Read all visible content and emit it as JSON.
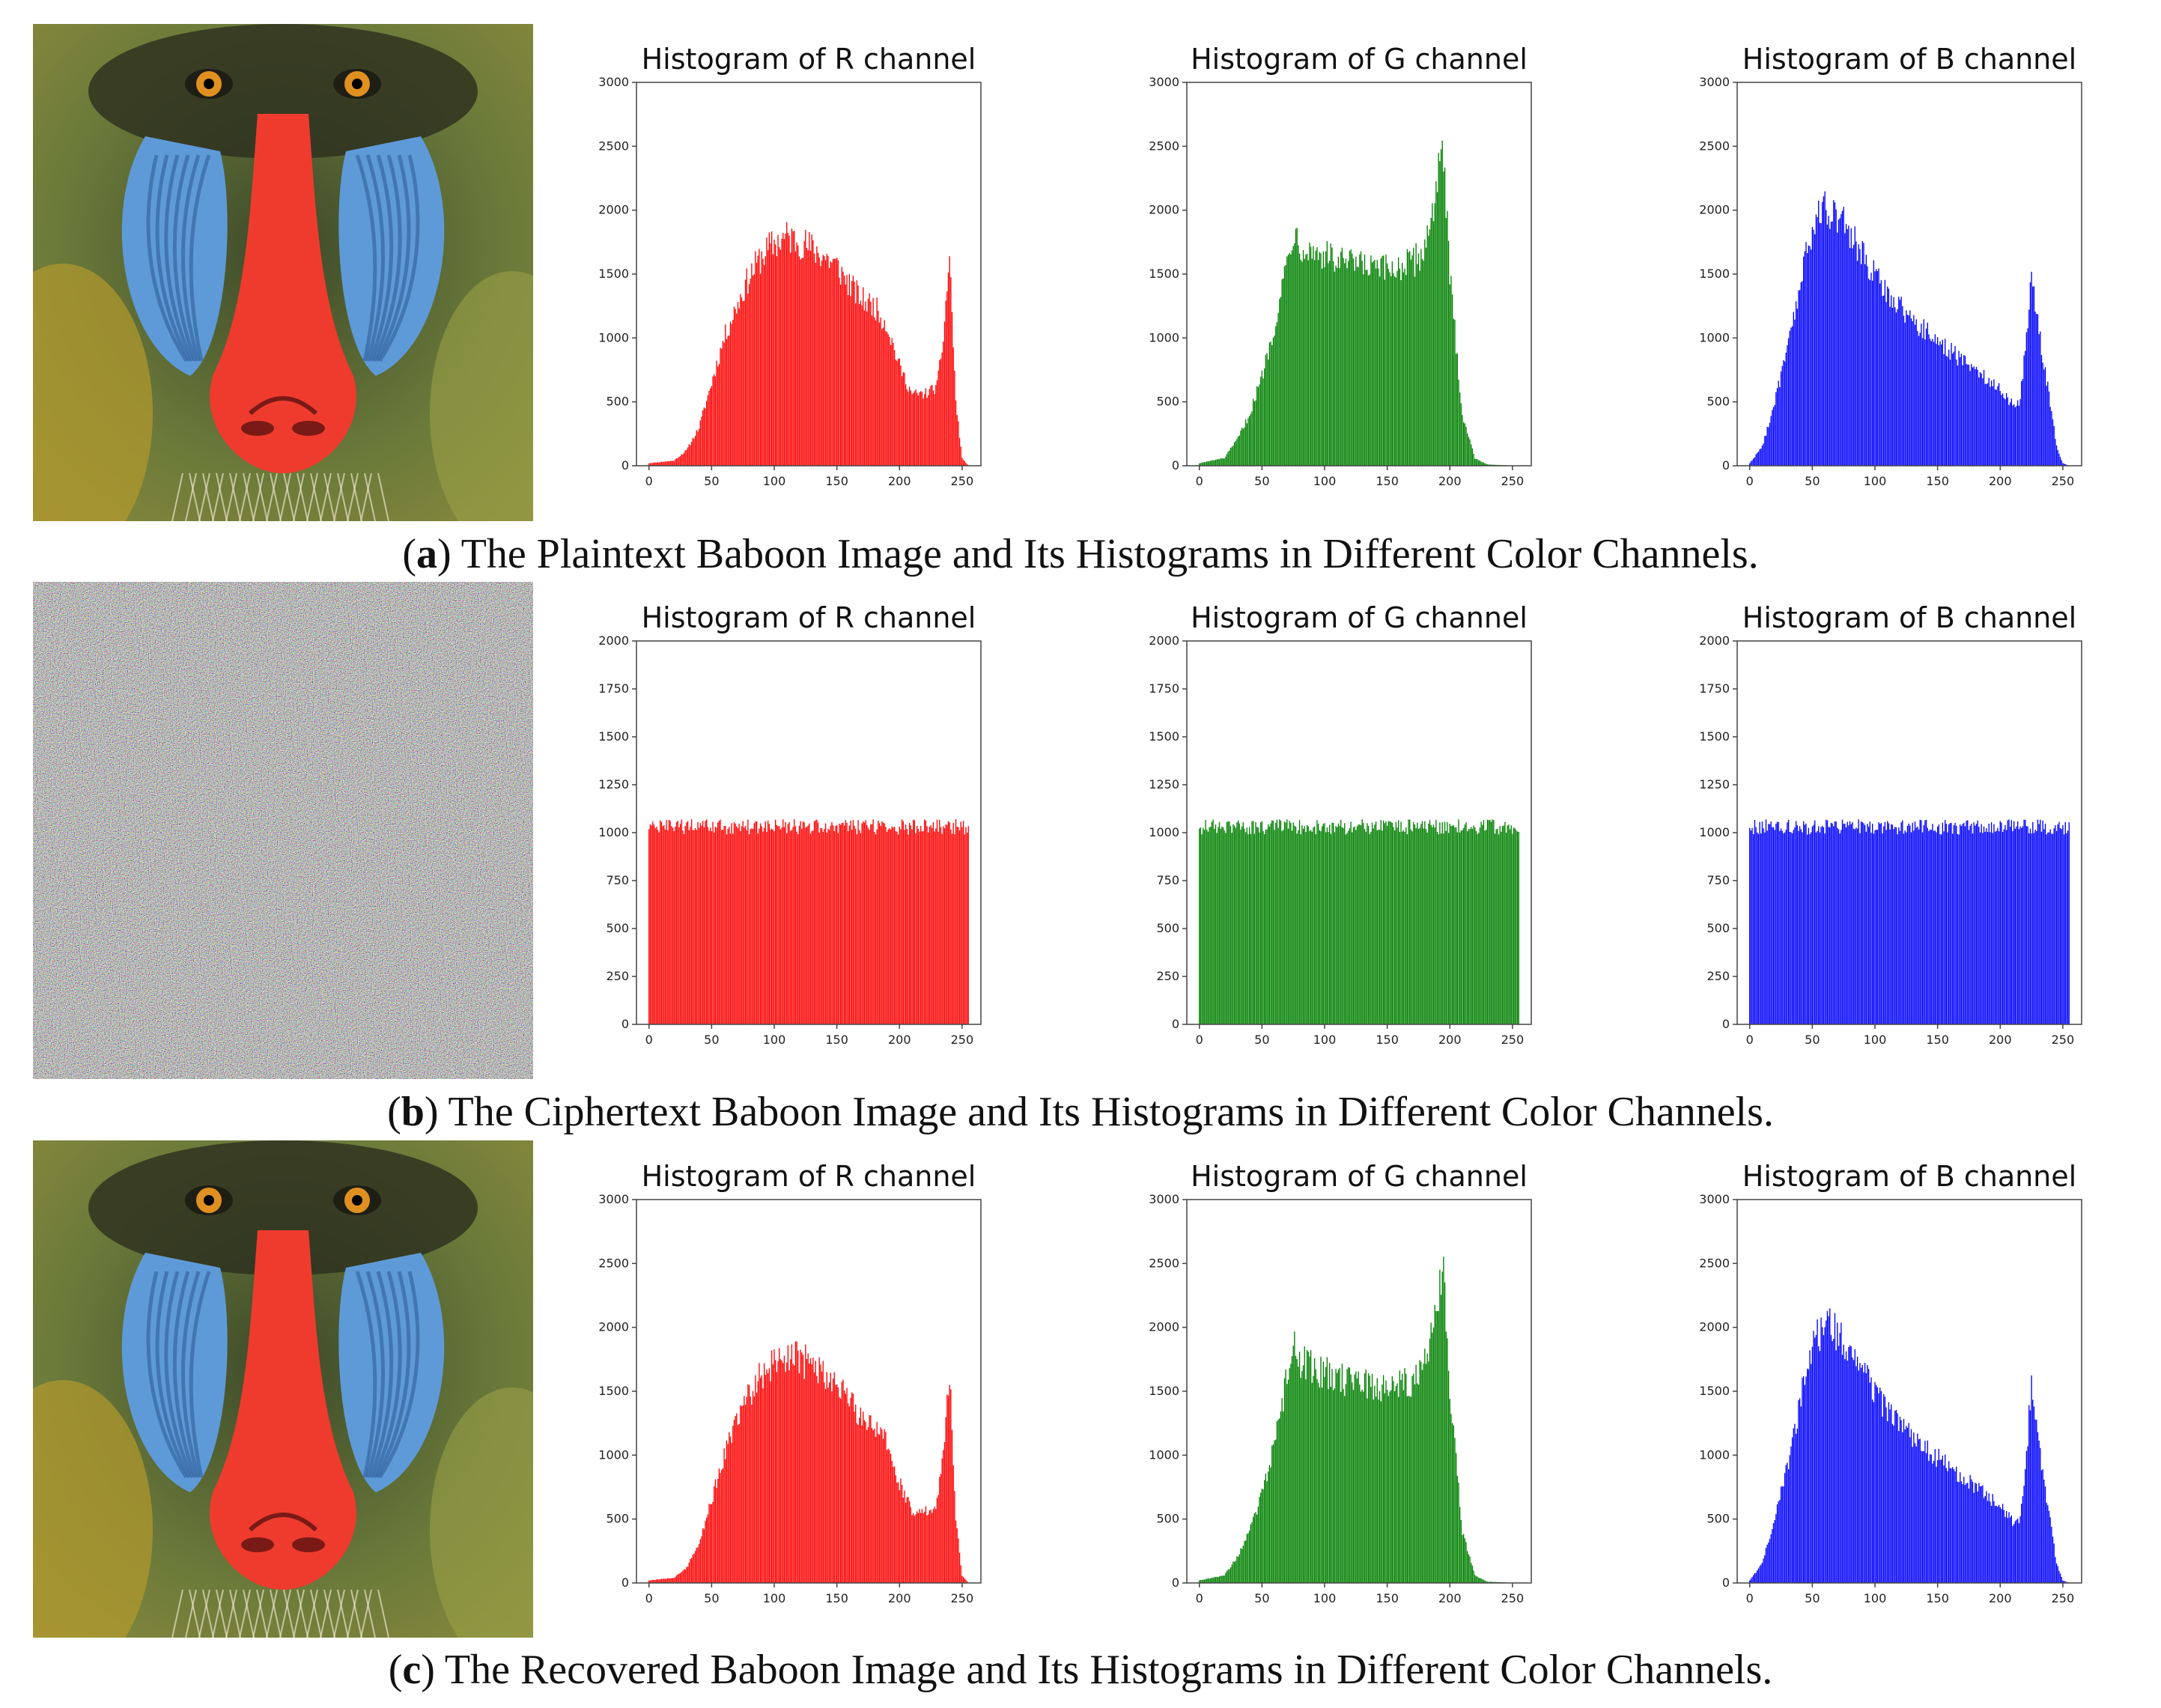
{
  "rows": [
    {
      "caption_letter": "a",
      "caption_text": "The Plaintext Baboon Image and Its Histograms in Different Color Channels.",
      "image_kind": "baboon"
    },
    {
      "caption_letter": "b",
      "caption_text": "The Ciphertext Baboon Image and Its Histograms in Different Color Channels.",
      "image_kind": "noise"
    },
    {
      "caption_letter": "c",
      "caption_text": "The Recovered Baboon Image and Its Histograms in Different Color Channels.",
      "image_kind": "baboon"
    }
  ],
  "chart_data": [
    {
      "type": "bar",
      "title": "Histogram of R channel",
      "color": "#ff0000",
      "profile": "R_plain",
      "xlim": [
        -10,
        265
      ],
      "xticks": [
        "0",
        "50",
        "100",
        "150",
        "200",
        "250"
      ],
      "ylim": [
        0,
        3000
      ],
      "yticks": [
        "0",
        "500",
        "1000",
        "1500",
        "2000",
        "2500",
        "3000"
      ]
    },
    {
      "type": "bar",
      "title": "Histogram of G channel",
      "color": "#008000",
      "profile": "G_plain",
      "xlim": [
        -10,
        265
      ],
      "xticks": [
        "0",
        "50",
        "100",
        "150",
        "200",
        "250"
      ],
      "ylim": [
        0,
        3000
      ],
      "yticks": [
        "0",
        "500",
        "1000",
        "1500",
        "2000",
        "2500",
        "3000"
      ]
    },
    {
      "type": "bar",
      "title": "Histogram of B channel",
      "color": "#0000ff",
      "profile": "B_plain",
      "xlim": [
        -10,
        265
      ],
      "xticks": [
        "0",
        "50",
        "100",
        "150",
        "200",
        "250"
      ],
      "ylim": [
        0,
        3000
      ],
      "yticks": [
        "0",
        "500",
        "1000",
        "1500",
        "2000",
        "2500",
        "3000"
      ]
    },
    {
      "type": "bar",
      "title": "Histogram of R channel",
      "color": "#ff0000",
      "profile": "flat",
      "xlim": [
        -10,
        265
      ],
      "xticks": [
        "0",
        "50",
        "100",
        "150",
        "200",
        "250"
      ],
      "ylim": [
        0,
        2000
      ],
      "yticks": [
        "0",
        "250",
        "500",
        "750",
        "1000",
        "1250",
        "1500",
        "1750",
        "2000"
      ]
    },
    {
      "type": "bar",
      "title": "Histogram of G channel",
      "color": "#008000",
      "profile": "flat",
      "xlim": [
        -10,
        265
      ],
      "xticks": [
        "0",
        "50",
        "100",
        "150",
        "200",
        "250"
      ],
      "ylim": [
        0,
        2000
      ],
      "yticks": [
        "0",
        "250",
        "500",
        "750",
        "1000",
        "1250",
        "1500",
        "1750",
        "2000"
      ]
    },
    {
      "type": "bar",
      "title": "Histogram of B channel",
      "color": "#0000ff",
      "profile": "flat",
      "xlim": [
        -10,
        265
      ],
      "xticks": [
        "0",
        "50",
        "100",
        "150",
        "200",
        "250"
      ],
      "ylim": [
        0,
        2000
      ],
      "yticks": [
        "0",
        "250",
        "500",
        "750",
        "1000",
        "1250",
        "1500",
        "1750",
        "2000"
      ]
    },
    {
      "type": "bar",
      "title": "Histogram of R channel",
      "color": "#ff0000",
      "profile": "R_plain",
      "xlim": [
        -10,
        265
      ],
      "xticks": [
        "0",
        "50",
        "100",
        "150",
        "200",
        "250"
      ],
      "ylim": [
        0,
        3000
      ],
      "yticks": [
        "0",
        "500",
        "1000",
        "1500",
        "2000",
        "2500",
        "3000"
      ]
    },
    {
      "type": "bar",
      "title": "Histogram of G channel",
      "color": "#008000",
      "profile": "G_plain",
      "xlim": [
        -10,
        265
      ],
      "xticks": [
        "0",
        "50",
        "100",
        "150",
        "200",
        "250"
      ],
      "ylim": [
        0,
        3000
      ],
      "yticks": [
        "0",
        "500",
        "1000",
        "1500",
        "2000",
        "2500",
        "3000"
      ]
    },
    {
      "type": "bar",
      "title": "Histogram of B channel",
      "color": "#0000ff",
      "profile": "B_plain",
      "xlim": [
        -10,
        265
      ],
      "xticks": [
        "0",
        "50",
        "100",
        "150",
        "200",
        "250"
      ],
      "ylim": [
        0,
        3000
      ],
      "yticks": [
        "0",
        "500",
        "1000",
        "1500",
        "2000",
        "2500",
        "3000"
      ]
    }
  ],
  "profiles": {
    "R_plain": [
      [
        0,
        20
      ],
      [
        20,
        40
      ],
      [
        30,
        120
      ],
      [
        40,
        300
      ],
      [
        50,
        650
      ],
      [
        60,
        1000
      ],
      [
        70,
        1250
      ],
      [
        80,
        1480
      ],
      [
        90,
        1640
      ],
      [
        100,
        1740
      ],
      [
        110,
        1790
      ],
      [
        120,
        1760
      ],
      [
        130,
        1700
      ],
      [
        140,
        1640
      ],
      [
        150,
        1560
      ],
      [
        160,
        1420
      ],
      [
        170,
        1300
      ],
      [
        180,
        1250
      ],
      [
        190,
        1100
      ],
      [
        200,
        780
      ],
      [
        210,
        560
      ],
      [
        220,
        560
      ],
      [
        230,
        620
      ],
      [
        235,
        1000
      ],
      [
        240,
        1650
      ],
      [
        245,
        500
      ],
      [
        250,
        60
      ],
      [
        255,
        0
      ]
    ],
    "G_plain": [
      [
        0,
        20
      ],
      [
        20,
        60
      ],
      [
        30,
        200
      ],
      [
        40,
        400
      ],
      [
        50,
        700
      ],
      [
        60,
        1100
      ],
      [
        70,
        1600
      ],
      [
        75,
        1850
      ],
      [
        80,
        1750
      ],
      [
        90,
        1680
      ],
      [
        100,
        1650
      ],
      [
        110,
        1600
      ],
      [
        120,
        1580
      ],
      [
        130,
        1560
      ],
      [
        140,
        1540
      ],
      [
        150,
        1530
      ],
      [
        160,
        1560
      ],
      [
        170,
        1580
      ],
      [
        180,
        1700
      ],
      [
        185,
        1950
      ],
      [
        190,
        2250
      ],
      [
        195,
        2400
      ],
      [
        200,
        1500
      ],
      [
        210,
        400
      ],
      [
        220,
        60
      ],
      [
        230,
        10
      ],
      [
        255,
        0
      ]
    ],
    "B_plain": [
      [
        0,
        20
      ],
      [
        10,
        150
      ],
      [
        20,
        500
      ],
      [
        30,
        900
      ],
      [
        40,
        1400
      ],
      [
        50,
        1850
      ],
      [
        60,
        2050
      ],
      [
        70,
        1950
      ],
      [
        80,
        1820
      ],
      [
        90,
        1650
      ],
      [
        100,
        1480
      ],
      [
        110,
        1360
      ],
      [
        120,
        1250
      ],
      [
        130,
        1140
      ],
      [
        140,
        1060
      ],
      [
        150,
        980
      ],
      [
        160,
        900
      ],
      [
        170,
        820
      ],
      [
        180,
        760
      ],
      [
        190,
        680
      ],
      [
        200,
        600
      ],
      [
        210,
        480
      ],
      [
        215,
        480
      ],
      [
        220,
        900
      ],
      [
        225,
        1550
      ],
      [
        230,
        1100
      ],
      [
        240,
        500
      ],
      [
        245,
        150
      ],
      [
        250,
        20
      ],
      [
        255,
        0
      ]
    ],
    "flat": [
      [
        0,
        1030
      ],
      [
        255,
        1030
      ]
    ]
  }
}
